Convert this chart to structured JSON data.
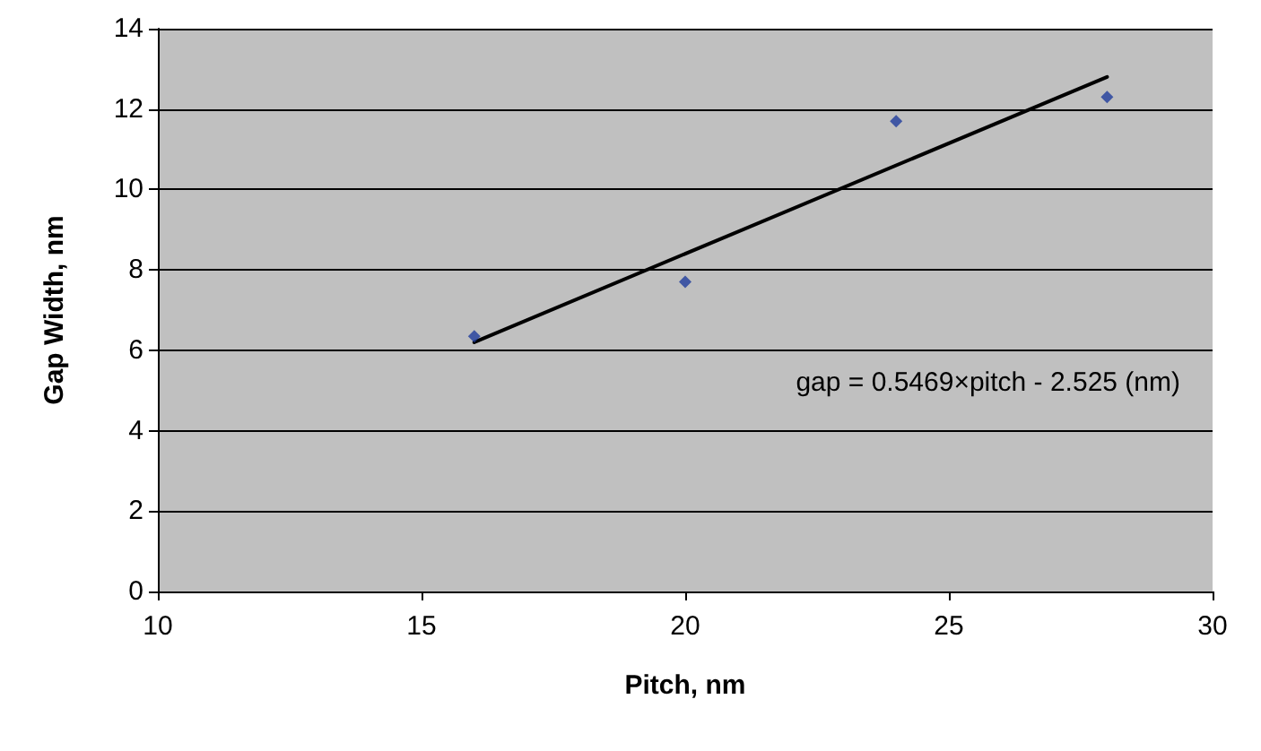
{
  "chart_data": {
    "type": "scatter",
    "xlabel": "Pitch, nm",
    "ylabel": "Gap Width, nm",
    "annotations": [
      "gap = 0.5469×pitch - 2.525 (nm)"
    ],
    "series": [
      {
        "color": "#1f3c9c",
        "marker": "diamond",
        "x": [
          16,
          20,
          24,
          28
        ],
        "values": [
          6.35,
          7.7,
          11.7,
          12.3
        ]
      },
      {
        "type": "line",
        "color": "#000000",
        "marker": "none",
        "line_style": "solid",
        "x": [
          16,
          28
        ],
        "values": [
          6.2,
          12.8
        ]
      }
    ],
    "xlim": [
      10,
      30
    ],
    "xticks": [
      10,
      15,
      20,
      25,
      30
    ],
    "ylim": [
      0,
      14
    ],
    "yticks": [
      0,
      2,
      4,
      6,
      8,
      10,
      12,
      14
    ],
    "grid": "y"
  }
}
